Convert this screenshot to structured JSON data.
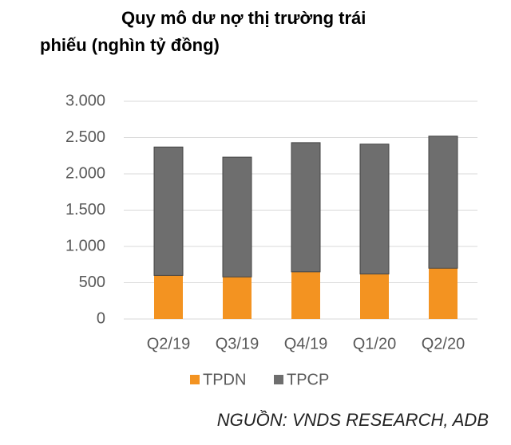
{
  "chart_data": {
    "type": "stacked_bar",
    "title": [
      "Quy mô dư nợ thị trường trái",
      "phiếu (nghìn tỷ đồng)"
    ],
    "categories": [
      "Q2/19",
      "Q3/19",
      "Q4/19",
      "Q1/20",
      "Q2/20"
    ],
    "series": [
      {
        "name": "TPDN",
        "color": "#f39321",
        "values": [
          600,
          580,
          650,
          620,
          700
        ]
      },
      {
        "name": "TPCP",
        "color": "#6e6e6e",
        "values": [
          1770,
          1650,
          1780,
          1790,
          1820
        ]
      }
    ],
    "ylim": [
      0,
      3000
    ],
    "yticks": [
      0,
      500,
      {
        "value": 1000,
        "label": "1.000"
      },
      {
        "value": 1500,
        "label": "1.500"
      },
      {
        "value": 2000,
        "label": "2.000"
      },
      {
        "value": 2500,
        "label": "2.500"
      },
      {
        "value": 3000,
        "label": "3.000"
      }
    ],
    "grid": true,
    "legend": "bottom",
    "source": "NGUỒN: VNDS RESEARCH, ADB"
  }
}
